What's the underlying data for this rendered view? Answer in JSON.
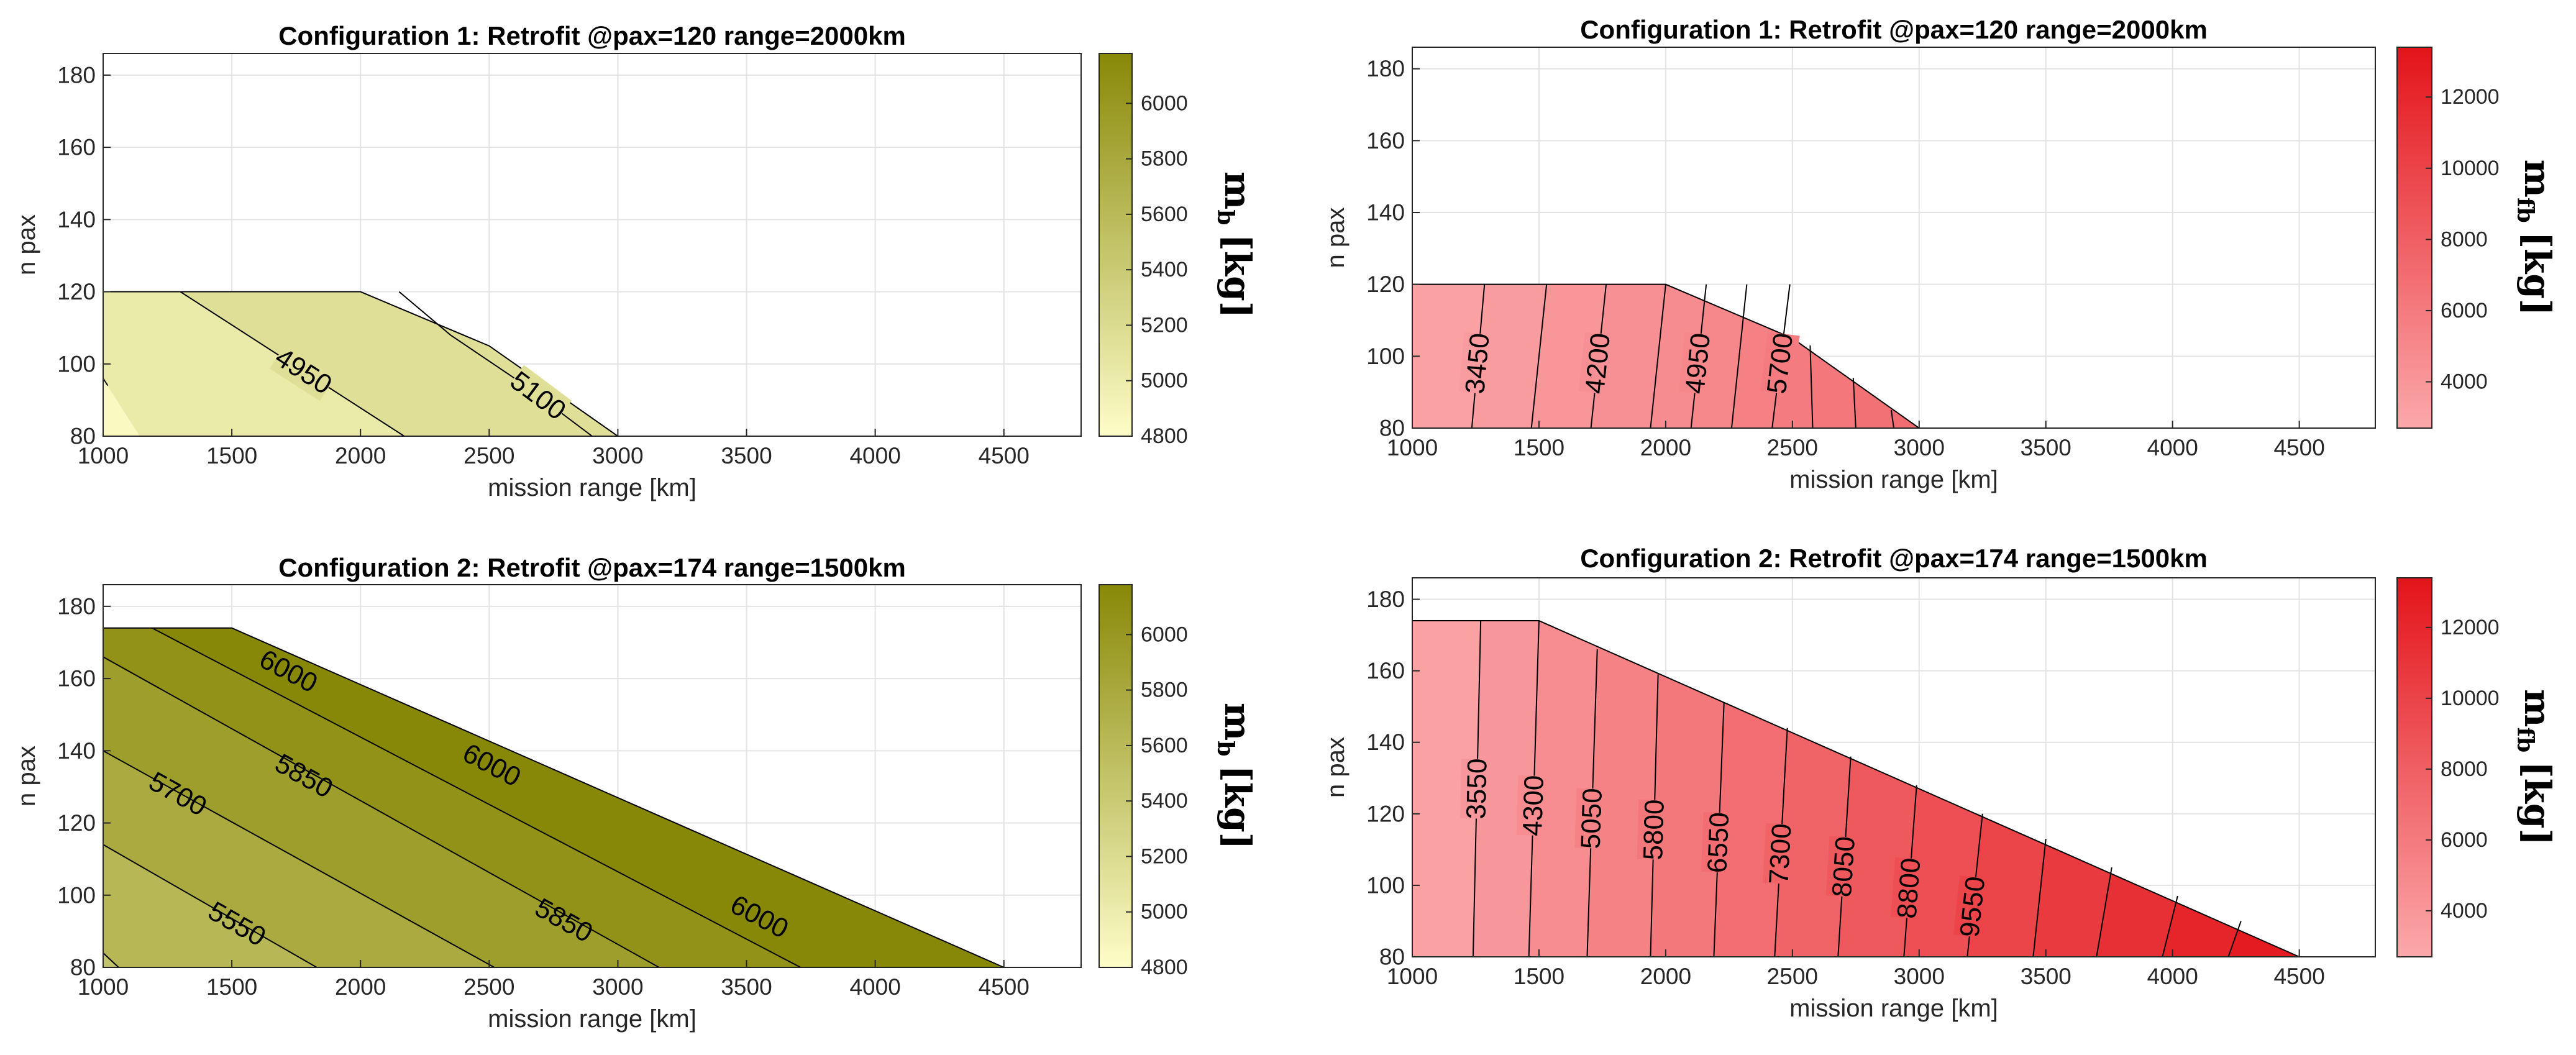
{
  "chart_data": [
    {
      "id": "tl",
      "type": "filled-contour",
      "title": "Configuration 1: Retrofit @pax=120 range=2000km",
      "xlabel": "mission range [km]",
      "ylabel": "n pax",
      "xlim": [
        1000,
        4800
      ],
      "ylim": [
        80,
        186
      ],
      "xticks": [
        1000,
        1500,
        2000,
        2500,
        3000,
        3500,
        4000,
        4500
      ],
      "yticks": [
        80,
        100,
        120,
        140,
        160,
        180
      ],
      "colorbar": {
        "label_main": "m",
        "label_sub": "b",
        "label_unit": "[kg]",
        "range": [
          4800,
          6180
        ],
        "ticks": [
          4800,
          5000,
          5200,
          5400,
          5600,
          5800,
          6000
        ],
        "color_low": "#fdfdc8",
        "color_high": "#888808"
      },
      "feasible_region": {
        "range": [
          1000,
          1000,
          2000,
          2500,
          3000
        ],
        "pax": [
          80,
          120,
          120,
          105,
          80
        ]
      },
      "contour_levels": [
        {
          "value": 4800,
          "label": ""
        },
        {
          "value": 4950,
          "label": "4950"
        },
        {
          "value": 5100,
          "label": "5100"
        }
      ],
      "contour_lines": [
        {
          "range": [
            1000,
            1018
          ],
          "pax": [
            96,
            94
          ]
        },
        {
          "range": [
            1300,
            2170
          ],
          "pax": [
            120,
            80
          ]
        },
        {
          "range": [
            2150,
            2350,
            2620,
            2900
          ],
          "pax": [
            120,
            108,
            95,
            80
          ]
        }
      ],
      "region_values": [
        4850,
        5020,
        5150
      ]
    },
    {
      "id": "tr",
      "type": "filled-contour",
      "title": "Configuration 1: Retrofit @pax=120 range=2000km",
      "xlabel": "mission range [km]",
      "ylabel": "n pax",
      "xlim": [
        1000,
        4800
      ],
      "ylim": [
        80,
        186
      ],
      "xticks": [
        1000,
        1500,
        2000,
        2500,
        3000,
        3500,
        4000,
        4500
      ],
      "yticks": [
        80,
        100,
        120,
        140,
        160,
        180
      ],
      "colorbar": {
        "label_main": "m",
        "label_sub": "fb",
        "label_unit": "[kg]",
        "range": [
          2700,
          13400
        ],
        "ticks": [
          4000,
          6000,
          8000,
          10000,
          12000
        ],
        "color_low": "#fba8ab",
        "color_high": "#e3141a"
      },
      "feasible_region": {
        "range": [
          1000,
          1000,
          2000,
          2500,
          3000
        ],
        "pax": [
          80,
          120,
          120,
          105,
          80
        ]
      },
      "contour_levels": [
        {
          "value": 3450,
          "label": "3450"
        },
        {
          "value": 3825,
          "label": ""
        },
        {
          "value": 4200,
          "label": "4200"
        },
        {
          "value": 4575,
          "label": ""
        },
        {
          "value": 4950,
          "label": "4950"
        },
        {
          "value": 5325,
          "label": ""
        },
        {
          "value": 5700,
          "label": "5700"
        },
        {
          "value": 6075,
          "label": ""
        },
        {
          "value": 6450,
          "label": ""
        },
        {
          "value": 6825,
          "label": ""
        },
        {
          "value": 7200,
          "label": ""
        }
      ],
      "contour_lines": [
        {
          "range": [
            1285,
            1235
          ],
          "pax": [
            120,
            80
          ]
        },
        {
          "range": [
            1530,
            1470
          ],
          "pax": [
            120,
            80
          ]
        },
        {
          "range": [
            1765,
            1705
          ],
          "pax": [
            120,
            80
          ]
        },
        {
          "range": [
            2000,
            1940
          ],
          "pax": [
            120,
            80
          ]
        },
        {
          "range": [
            2160,
            2100
          ],
          "pax": [
            120,
            80
          ]
        },
        {
          "range": [
            2320,
            2260
          ],
          "pax": [
            120,
            80
          ]
        },
        {
          "range": [
            2490,
            2420
          ],
          "pax": [
            120,
            80
          ]
        },
        {
          "range": [
            2570,
            2580
          ],
          "pax": [
            103,
            80
          ]
        },
        {
          "range": [
            2740,
            2750
          ],
          "pax": [
            94,
            80
          ]
        },
        {
          "range": [
            2890,
            2900
          ],
          "pax": [
            85,
            80
          ]
        }
      ],
      "region_values": [
        3200,
        3600,
        4000,
        4400,
        4750,
        5100,
        5500,
        5900,
        6250,
        6650,
        7000,
        7400
      ]
    },
    {
      "id": "bl",
      "type": "filled-contour",
      "title": "Configuration 2: Retrofit @pax=174 range=1500km",
      "xlabel": "mission range [km]",
      "ylabel": "n pax",
      "xlim": [
        1000,
        4800
      ],
      "ylim": [
        80,
        186
      ],
      "xticks": [
        1000,
        1500,
        2000,
        2500,
        3000,
        3500,
        4000,
        4500
      ],
      "yticks": [
        80,
        100,
        120,
        140,
        160,
        180
      ],
      "colorbar": {
        "label_main": "m",
        "label_sub": "b",
        "label_unit": "[kg]",
        "range": [
          4800,
          6180
        ],
        "ticks": [
          4800,
          5000,
          5200,
          5400,
          5600,
          5800,
          6000
        ],
        "color_low": "#fdfdc8",
        "color_high": "#888808"
      },
      "feasible_region": {
        "range": [
          1000,
          1000,
          1500,
          4500
        ],
        "pax": [
          80,
          174,
          174,
          80
        ]
      },
      "contour_levels": [
        {
          "value": 5550,
          "label": "5550"
        },
        {
          "value": 5700,
          "label": "5700"
        },
        {
          "value": 5850,
          "label": "5850"
        },
        {
          "value": 6000,
          "label": "6000"
        }
      ],
      "contour_lines": [
        {
          "range": [
            1000,
            1060
          ],
          "pax": [
            84,
            80
          ]
        },
        {
          "range": [
            1000,
            1830
          ],
          "pax": [
            114,
            80
          ]
        },
        {
          "range": [
            1000,
            2520
          ],
          "pax": [
            140,
            80
          ]
        },
        {
          "range": [
            1000,
            3160
          ],
          "pax": [
            166,
            80
          ]
        },
        {
          "range": [
            1190,
            3710
          ],
          "pax": [
            174,
            80
          ]
        }
      ],
      "contour_labels": [
        {
          "text": "5550",
          "at_range": 1520,
          "at_pax": 92
        },
        {
          "text": "5700",
          "at_range": 1290,
          "at_pax": 128
        },
        {
          "text": "5850",
          "at_range": 1780,
          "at_pax": 133
        },
        {
          "text": "5850",
          "at_range": 2790,
          "at_pax": 93
        },
        {
          "text": "6000",
          "at_range": 1720,
          "at_pax": 162
        },
        {
          "text": "6000",
          "at_range": 2510,
          "at_pax": 136
        },
        {
          "text": "6000",
          "at_range": 3550,
          "at_pax": 94
        }
      ],
      "region_values": [
        5480,
        5620,
        5780,
        5920,
        6060,
        6180
      ]
    },
    {
      "id": "br",
      "type": "filled-contour",
      "title": "Configuration 2: Retrofit @pax=174 range=1500km",
      "xlabel": "mission range [km]",
      "ylabel": "n pax",
      "xlim": [
        1000,
        4800
      ],
      "ylim": [
        80,
        186
      ],
      "xticks": [
        1000,
        1500,
        2000,
        2500,
        3000,
        3500,
        4000,
        4500
      ],
      "yticks": [
        80,
        100,
        120,
        140,
        160,
        180
      ],
      "colorbar": {
        "label_main": "m",
        "label_sub": "fb",
        "label_unit": "[kg]",
        "range": [
          2700,
          13400
        ],
        "ticks": [
          4000,
          6000,
          8000,
          10000,
          12000
        ],
        "color_low": "#fba8ab",
        "color_high": "#e3141a"
      },
      "feasible_region": {
        "range": [
          1000,
          1000,
          1500,
          4500
        ],
        "pax": [
          80,
          174,
          174,
          80
        ]
      },
      "contour_levels": [
        {
          "value": 3550,
          "label": "3550"
        },
        {
          "value": 4300,
          "label": "4300"
        },
        {
          "value": 5050,
          "label": "5050"
        },
        {
          "value": 5800,
          "label": "5800"
        },
        {
          "value": 6550,
          "label": "6550"
        },
        {
          "value": 7300,
          "label": "7300"
        },
        {
          "value": 8050,
          "label": "8050"
        },
        {
          "value": 8800,
          "label": "8800"
        },
        {
          "value": 9550,
          "label": "9550"
        },
        {
          "value": 10300,
          "label": ""
        },
        {
          "value": 11050,
          "label": ""
        },
        {
          "value": 11800,
          "label": ""
        },
        {
          "value": 12550,
          "label": ""
        }
      ],
      "contour_lines": [
        {
          "range": [
            1270,
            1240
          ],
          "pax": [
            174,
            80
          ]
        },
        {
          "range": [
            1500,
            1460
          ],
          "pax": [
            174,
            80
          ]
        },
        {
          "range": [
            1730,
            1690
          ],
          "pax": [
            166,
            80
          ]
        },
        {
          "range": [
            1970,
            1940
          ],
          "pax": [
            159,
            80
          ]
        },
        {
          "range": [
            2230,
            2190
          ],
          "pax": [
            151,
            80
          ]
        },
        {
          "range": [
            2480,
            2430
          ],
          "pax": [
            144,
            80
          ]
        },
        {
          "range": [
            2730,
            2680
          ],
          "pax": [
            136,
            80
          ]
        },
        {
          "range": [
            2990,
            2940
          ],
          "pax": [
            128,
            80
          ]
        },
        {
          "range": [
            3250,
            3190
          ],
          "pax": [
            120,
            80
          ]
        },
        {
          "range": [
            3500,
            3450
          ],
          "pax": [
            113,
            80
          ]
        },
        {
          "range": [
            3760,
            3700
          ],
          "pax": [
            105,
            80
          ]
        },
        {
          "range": [
            4020,
            3960
          ],
          "pax": [
            97,
            80
          ]
        },
        {
          "range": [
            4270,
            4220
          ],
          "pax": [
            90,
            80
          ]
        }
      ],
      "region_values": [
        3200,
        3900,
        4650,
        5400,
        6150,
        6900,
        7650,
        8400,
        9150,
        9900,
        10650,
        11400,
        12150,
        12900
      ]
    }
  ]
}
